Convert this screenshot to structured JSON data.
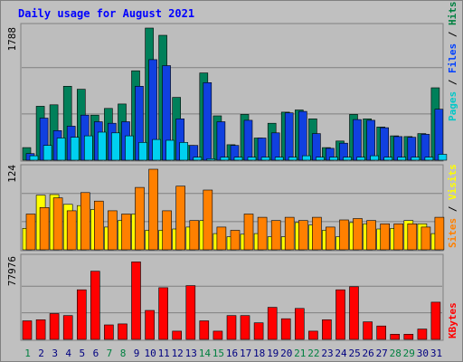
{
  "chart_data": [
    {
      "type": "bar",
      "title": "Daily usage for August 2021",
      "panel": "Pages / Files / Hits",
      "ymax_label": "1788",
      "legend": [
        {
          "name": "Pages",
          "color": "#00c8c8"
        },
        {
          "name": "Files",
          "color": "#0040ff"
        },
        {
          "name": "Hits",
          "color": "#008040"
        }
      ],
      "series": [
        {
          "name": "Hits",
          "color": "#00805a",
          "values": [
            170,
            730,
            750,
            1000,
            960,
            610,
            700,
            760,
            1210,
            1788,
            1690,
            850,
            200,
            1180,
            600,
            210,
            620,
            300,
            500,
            650,
            680,
            560,
            170,
            260,
            620,
            560,
            450,
            330,
            320,
            360,
            980
          ]
        },
        {
          "name": "Files",
          "color": "#1040e0",
          "values": [
            90,
            570,
            400,
            460,
            610,
            520,
            500,
            520,
            1000,
            1360,
            1280,
            560,
            200,
            1050,
            520,
            200,
            540,
            300,
            370,
            640,
            660,
            360,
            160,
            230,
            550,
            540,
            440,
            320,
            310,
            350,
            690
          ]
        },
        {
          "name": "Pages",
          "color": "#00d0f0",
          "values": [
            60,
            200,
            300,
            310,
            330,
            380,
            370,
            330,
            240,
            280,
            270,
            240,
            40,
            20,
            40,
            40,
            40,
            40,
            40,
            40,
            60,
            40,
            40,
            40,
            40,
            60,
            40,
            40,
            40,
            40,
            80
          ]
        }
      ]
    },
    {
      "type": "bar",
      "panel": "Sites / Visits",
      "ymax_label": "124",
      "legend": [
        {
          "name": "Sites",
          "color": "#ff8000"
        },
        {
          "name": "Visits",
          "color": "#ffff00"
        }
      ],
      "series": [
        {
          "name": "Visits",
          "color": "#ffff00",
          "values": [
            33,
            84,
            85,
            70,
            68,
            62,
            35,
            45,
            55,
            30,
            30,
            32,
            35,
            45,
            25,
            20,
            24,
            25,
            20,
            20,
            42,
            38,
            30,
            20,
            42,
            40,
            32,
            33,
            45,
            40,
            25
          ]
        },
        {
          "name": "Sites",
          "color": "#ff8000",
          "values": [
            55,
            65,
            80,
            60,
            88,
            75,
            60,
            55,
            96,
            124,
            60,
            98,
            45,
            92,
            35,
            30,
            55,
            50,
            45,
            50,
            45,
            50,
            35,
            46,
            48,
            45,
            40,
            40,
            40,
            35,
            50
          ]
        }
      ]
    },
    {
      "type": "bar",
      "panel": "KBytes",
      "ymax_label": "77976",
      "legend": [
        {
          "name": "KBytes",
          "color": "#ff0000"
        }
      ],
      "series": [
        {
          "name": "KBytes",
          "color": "#ff0000",
          "values": [
            18000,
            19000,
            25000,
            23000,
            48000,
            66000,
            14000,
            15000,
            75000,
            28000,
            50000,
            8000,
            52000,
            18000,
            8000,
            23000,
            23000,
            16000,
            31000,
            20000,
            30000,
            8000,
            19000,
            48000,
            51000,
            17000,
            13000,
            5000,
            5000,
            10000,
            36000
          ]
        }
      ]
    }
  ],
  "days": [
    "1",
    "2",
    "3",
    "4",
    "5",
    "6",
    "7",
    "8",
    "9",
    "10",
    "11",
    "12",
    "13",
    "14",
    "15",
    "16",
    "17",
    "18",
    "19",
    "20",
    "21",
    "22",
    "23",
    "24",
    "25",
    "26",
    "27",
    "28",
    "29",
    "30",
    "31"
  ],
  "weekend_days": [
    1,
    7,
    8,
    14,
    15,
    21,
    22,
    28,
    29
  ],
  "colors": {
    "background": "#c0c0c0",
    "panel": "#b8b8b8",
    "title": "#0000ff",
    "weekday_label": "#000080",
    "weekend_label": "#008040"
  }
}
